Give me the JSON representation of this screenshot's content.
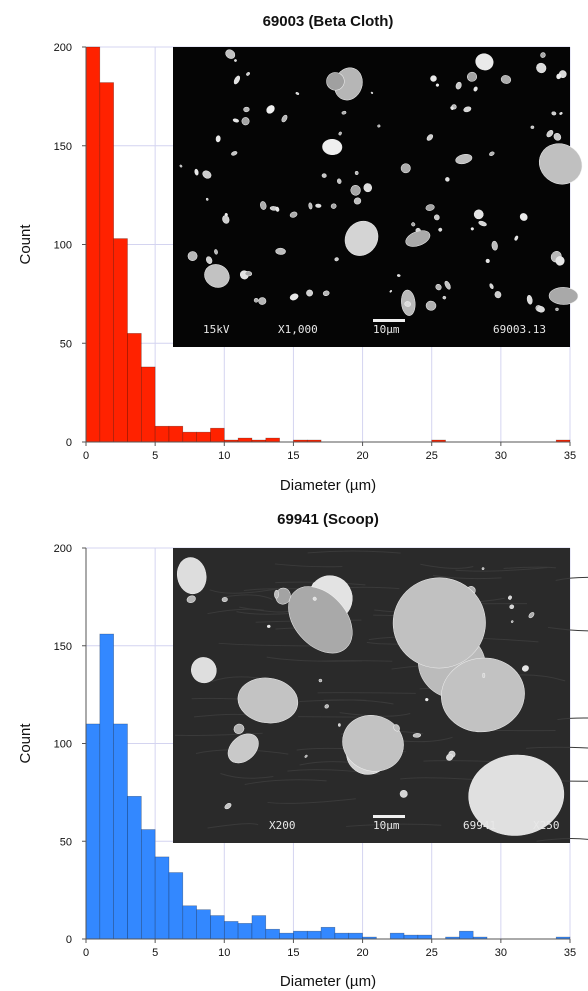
{
  "chart_data": [
    {
      "type": "bar",
      "title": "69003 (Beta Cloth)",
      "xlabel": "Diameter (µm)",
      "ylabel": "Count",
      "xlim": [
        0,
        35
      ],
      "ylim": [
        0,
        200
      ],
      "xticks": [
        "0",
        "5",
        "10",
        "15",
        "20",
        "25",
        "30",
        "35"
      ],
      "yticks": [
        "0",
        "50",
        "100",
        "150",
        "200"
      ],
      "bin_width": 1,
      "color": "#ff2200",
      "grid": true,
      "bins": [
        {
          "x": 0,
          "count": 200
        },
        {
          "x": 1,
          "count": 182
        },
        {
          "x": 2,
          "count": 103
        },
        {
          "x": 3,
          "count": 55
        },
        {
          "x": 4,
          "count": 38
        },
        {
          "x": 5,
          "count": 8
        },
        {
          "x": 6,
          "count": 8
        },
        {
          "x": 7,
          "count": 5
        },
        {
          "x": 8,
          "count": 5
        },
        {
          "x": 9,
          "count": 7
        },
        {
          "x": 10,
          "count": 1
        },
        {
          "x": 11,
          "count": 2
        },
        {
          "x": 12,
          "count": 1
        },
        {
          "x": 13,
          "count": 2
        },
        {
          "x": 15,
          "count": 1
        },
        {
          "x": 16,
          "count": 1
        },
        {
          "x": 25,
          "count": 1
        },
        {
          "x": 34,
          "count": 1
        }
      ],
      "inset": {
        "name": "sem-micrograph-69003",
        "labels": [
          "15kV",
          "X1,000",
          "10µm",
          "69003.13"
        ]
      }
    },
    {
      "type": "bar",
      "title": "69941 (Scoop)",
      "xlabel": "Diameter (µm)",
      "ylabel": "Count",
      "xlim": [
        0,
        35
      ],
      "ylim": [
        0,
        200
      ],
      "xticks": [
        "0",
        "5",
        "10",
        "15",
        "20",
        "25",
        "30",
        "35"
      ],
      "yticks": [
        "0",
        "50",
        "100",
        "150",
        "200"
      ],
      "bin_width": 1,
      "color": "#3388ff",
      "grid": true,
      "bins": [
        {
          "x": 0,
          "count": 110
        },
        {
          "x": 1,
          "count": 156
        },
        {
          "x": 2,
          "count": 110
        },
        {
          "x": 3,
          "count": 73
        },
        {
          "x": 4,
          "count": 56
        },
        {
          "x": 5,
          "count": 42
        },
        {
          "x": 6,
          "count": 34
        },
        {
          "x": 7,
          "count": 17
        },
        {
          "x": 8,
          "count": 15
        },
        {
          "x": 9,
          "count": 12
        },
        {
          "x": 10,
          "count": 9
        },
        {
          "x": 11,
          "count": 8
        },
        {
          "x": 12,
          "count": 12
        },
        {
          "x": 13,
          "count": 5
        },
        {
          "x": 14,
          "count": 3
        },
        {
          "x": 15,
          "count": 4
        },
        {
          "x": 16,
          "count": 4
        },
        {
          "x": 17,
          "count": 6
        },
        {
          "x": 18,
          "count": 3
        },
        {
          "x": 19,
          "count": 3
        },
        {
          "x": 20,
          "count": 1
        },
        {
          "x": 22,
          "count": 3
        },
        {
          "x": 23,
          "count": 2
        },
        {
          "x": 24,
          "count": 2
        },
        {
          "x": 26,
          "count": 1
        },
        {
          "x": 27,
          "count": 4
        },
        {
          "x": 28,
          "count": 1
        },
        {
          "x": 34,
          "count": 1
        }
      ],
      "inset": {
        "name": "sem-micrograph-69941",
        "labels": [
          "X200",
          "10µm",
          "69941",
          "X250"
        ]
      }
    }
  ]
}
